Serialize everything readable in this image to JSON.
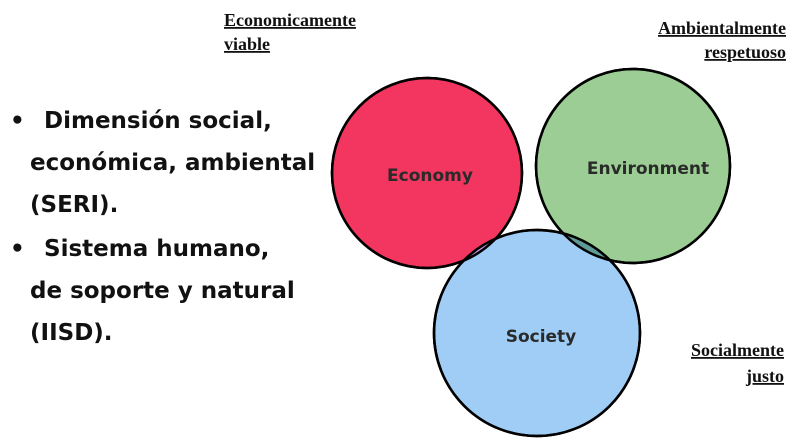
{
  "bullets": [
    {
      "lines": [
        "Dimensión social,",
        "económica, ambiental",
        "(SERI)."
      ]
    },
    {
      "lines": [
        "Sistema humano,",
        "de soporte y natural",
        "(IISD)."
      ]
    }
  ],
  "venn": {
    "circles": [
      {
        "label": "Economy"
      },
      {
        "label": "Environment"
      },
      {
        "label": "Society"
      }
    ],
    "captions": [
      {
        "lines": [
          "Economicamente",
          "viable"
        ]
      },
      {
        "lines": [
          "Ambientalmente",
          "respetuoso"
        ]
      },
      {
        "lines": [
          "Socialmente",
          "justo"
        ]
      }
    ]
  }
}
